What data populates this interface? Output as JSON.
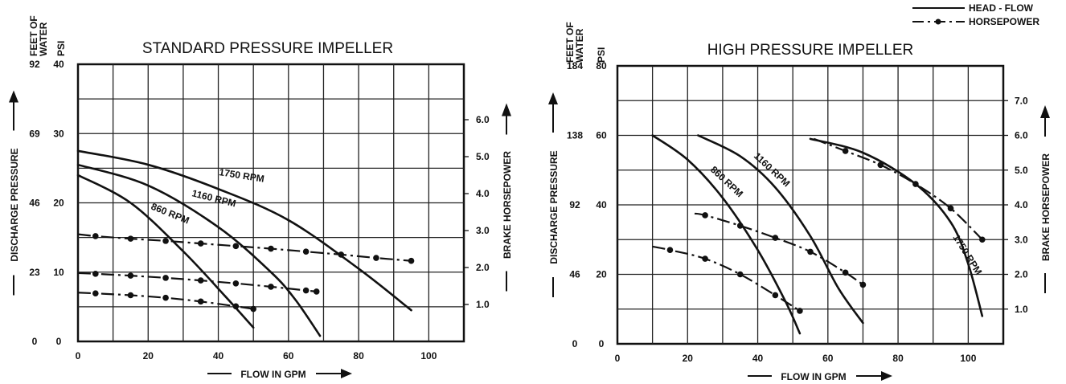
{
  "legend": {
    "head_flow_label": "HEAD - FLOW",
    "horsepower_label": "HORSEPOWER"
  },
  "chart_data": [
    {
      "type": "line",
      "title": "STANDARD PRESSURE IMPELLER",
      "xlabel": "FLOW IN GPM",
      "ylabel": "DISCHARGE PRESSURE",
      "y2label": "BRAKE HORSEPOWER",
      "feet_label": [
        "FEET OF",
        "WATER"
      ],
      "psi_label": "PSI",
      "xlim": [
        0,
        110
      ],
      "xticks": [
        0,
        20,
        40,
        60,
        80,
        100
      ],
      "ylim": [
        0,
        40
      ],
      "yticks_psi": [
        0,
        10,
        20,
        30,
        40
      ],
      "yticks_feet": [
        "0",
        "23",
        "46",
        "69",
        "92"
      ],
      "y2lim": [
        0,
        7.5
      ],
      "y2ticks": [
        "1.0",
        "2.0",
        "3.0",
        "4.0",
        "5.0",
        "6.0"
      ],
      "grid": true,
      "head_series": [
        {
          "name": "1750 RPM",
          "x": [
            0,
            20,
            40,
            60,
            80,
            95
          ],
          "y": [
            27.5,
            25.5,
            22,
            17.5,
            10.5,
            4.5
          ]
        },
        {
          "name": "1160 RPM",
          "x": [
            0,
            20,
            40,
            55,
            62,
            69
          ],
          "y": [
            25.5,
            22.5,
            16.5,
            10,
            6,
            0.8
          ]
        },
        {
          "name": "860 RPM",
          "x": [
            0,
            15,
            30,
            42,
            50
          ],
          "y": [
            24,
            20,
            13,
            6.5,
            2
          ]
        }
      ],
      "horsepower_series": [
        {
          "x": [
            0,
            5,
            15,
            25,
            35,
            45,
            55,
            65,
            75,
            85,
            95
          ],
          "y": [
            2.9,
            2.85,
            2.78,
            2.72,
            2.65,
            2.58,
            2.51,
            2.43,
            2.35,
            2.26,
            2.18
          ]
        },
        {
          "x": [
            0,
            5,
            15,
            25,
            35,
            45,
            55,
            65,
            68
          ],
          "y": [
            1.85,
            1.83,
            1.78,
            1.72,
            1.65,
            1.57,
            1.48,
            1.38,
            1.35
          ]
        },
        {
          "x": [
            0,
            5,
            15,
            25,
            35,
            45,
            50
          ],
          "y": [
            1.32,
            1.3,
            1.25,
            1.18,
            1.08,
            0.95,
            0.88
          ]
        }
      ]
    },
    {
      "type": "line",
      "title": "HIGH PRESSURE IMPELLER",
      "xlabel": "FLOW IN GPM",
      "ylabel": "DISCHARGE PRESSURE",
      "y2label": "BRAKE HORSEPOWER",
      "feet_label": [
        "FEET OF",
        "WATER"
      ],
      "psi_label": "PSI",
      "xlim": [
        0,
        110
      ],
      "xticks": [
        0,
        20,
        40,
        60,
        80,
        100
      ],
      "ylim": [
        0,
        80
      ],
      "yticks_psi": [
        0,
        20,
        40,
        60,
        80
      ],
      "yticks_feet": [
        "0",
        "46",
        "92",
        "138",
        "184"
      ],
      "y2lim": [
        0,
        8
      ],
      "y2ticks": [
        "1.0",
        "2.0",
        "3.0",
        "4.0",
        "5.0",
        "6.0",
        "7.0"
      ],
      "grid": true,
      "head_series": [
        {
          "name": "860 RPM",
          "x": [
            10,
            20,
            30,
            40,
            48,
            52
          ],
          "y": [
            60,
            53,
            42,
            27,
            12,
            3
          ]
        },
        {
          "name": "1160 RPM",
          "x": [
            23,
            35,
            45,
            55,
            63,
            70
          ],
          "y": [
            60,
            54,
            45,
            31,
            16,
            6
          ]
        },
        {
          "name": "1750 RPM",
          "x": [
            55,
            70,
            85,
            95,
            100,
            104
          ],
          "y": [
            59,
            55,
            46,
            35,
            23,
            8
          ]
        }
      ],
      "horsepower_series": [
        {
          "x": [
            10,
            15,
            25,
            35,
            45,
            52
          ],
          "y": [
            2.8,
            2.7,
            2.45,
            2.0,
            1.4,
            0.95
          ]
        },
        {
          "x": [
            22,
            25,
            35,
            45,
            55,
            65,
            70
          ],
          "y": [
            3.75,
            3.7,
            3.4,
            3.05,
            2.65,
            2.05,
            1.7
          ]
        },
        {
          "x": [
            56,
            65,
            75,
            85,
            95,
            104
          ],
          "y": [
            5.9,
            5.55,
            5.15,
            4.6,
            3.9,
            3.0
          ]
        }
      ]
    }
  ]
}
